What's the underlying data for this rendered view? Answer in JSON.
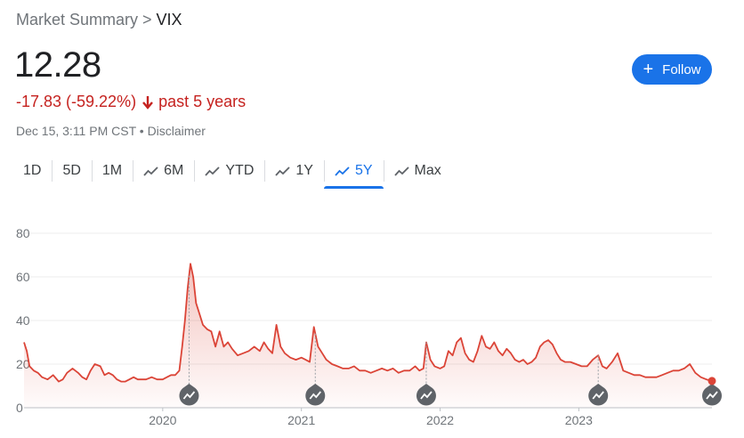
{
  "breadcrumb": {
    "parent": "Market Summary",
    "separator": ">",
    "current": "VIX"
  },
  "quote": {
    "price": "12.28",
    "change": "-17.83 (-59.22%)",
    "period": "past 5 years",
    "timestamp": "Dec 15, 3:11 PM CST",
    "meta_separator": "•",
    "disclaimer": "Disclaimer"
  },
  "follow_button": {
    "label": "Follow",
    "icon": "plus-icon"
  },
  "colors": {
    "negative": "#c5221f",
    "line": "#db4437",
    "accent": "#1a73e8",
    "marker": "#5f6368"
  },
  "tabs": [
    {
      "label": "1D",
      "icon": null,
      "active": false
    },
    {
      "label": "5D",
      "icon": null,
      "active": false
    },
    {
      "label": "1M",
      "icon": null,
      "active": false
    },
    {
      "label": "6M",
      "icon": "trend-icon",
      "active": false
    },
    {
      "label": "YTD",
      "icon": "trend-icon",
      "active": false
    },
    {
      "label": "1Y",
      "icon": "trend-icon",
      "active": false
    },
    {
      "label": "5Y",
      "icon": "trend-icon",
      "active": true
    },
    {
      "label": "Max",
      "icon": "trend-icon",
      "active": false
    }
  ],
  "chart_data": {
    "type": "area",
    "title": "",
    "xlabel": "",
    "ylabel": "",
    "ylim": [
      0,
      80
    ],
    "yticks": [
      0,
      20,
      40,
      60,
      80
    ],
    "xlim": [
      2019.0,
      2023.96
    ],
    "xticks": [
      2020,
      2021,
      2022,
      2023
    ],
    "xticklabels": [
      "2020",
      "2021",
      "2022",
      "2023"
    ],
    "grid": true,
    "legend": "none",
    "series": [
      {
        "x": [
          2019.0,
          2019.02,
          2019.04,
          2019.07,
          2019.1,
          2019.13,
          2019.17,
          2019.21,
          2019.25,
          2019.28,
          2019.31,
          2019.35,
          2019.39,
          2019.42,
          2019.45,
          2019.48,
          2019.51,
          2019.55,
          2019.58,
          2019.61,
          2019.64,
          2019.67,
          2019.7,
          2019.73,
          2019.76,
          2019.79,
          2019.82,
          2019.85,
          2019.88,
          2019.92,
          2019.96,
          2020.0,
          2020.03,
          2020.06,
          2020.09,
          2020.12,
          2020.14,
          2020.16,
          2020.18,
          2020.2,
          2020.22,
          2020.24,
          2020.26,
          2020.29,
          2020.32,
          2020.35,
          2020.38,
          2020.41,
          2020.44,
          2020.47,
          2020.5,
          2020.54,
          2020.58,
          2020.62,
          2020.66,
          2020.7,
          2020.73,
          2020.76,
          2020.79,
          2020.82,
          2020.85,
          2020.88,
          2020.92,
          2020.96,
          2021.0,
          2021.03,
          2021.06,
          2021.09,
          2021.12,
          2021.15,
          2021.18,
          2021.22,
          2021.26,
          2021.3,
          2021.34,
          2021.38,
          2021.42,
          2021.46,
          2021.5,
          2021.54,
          2021.58,
          2021.62,
          2021.66,
          2021.7,
          2021.74,
          2021.78,
          2021.82,
          2021.85,
          2021.88,
          2021.9,
          2021.93,
          2021.96,
          2022.0,
          2022.03,
          2022.06,
          2022.09,
          2022.12,
          2022.15,
          2022.18,
          2022.21,
          2022.24,
          2022.27,
          2022.3,
          2022.33,
          2022.36,
          2022.39,
          2022.42,
          2022.45,
          2022.48,
          2022.51,
          2022.54,
          2022.57,
          2022.6,
          2022.63,
          2022.66,
          2022.69,
          2022.72,
          2022.75,
          2022.78,
          2022.81,
          2022.84,
          2022.87,
          2022.9,
          2022.94,
          2022.98,
          2023.02,
          2023.06,
          2023.1,
          2023.14,
          2023.17,
          2023.2,
          2023.24,
          2023.28,
          2023.32,
          2023.36,
          2023.4,
          2023.44,
          2023.48,
          2023.52,
          2023.56,
          2023.6,
          2023.64,
          2023.68,
          2023.72,
          2023.76,
          2023.8,
          2023.84,
          2023.88,
          2023.92,
          2023.96
        ],
        "y": [
          30,
          26,
          19,
          17,
          16,
          14,
          13,
          15,
          12,
          13,
          16,
          18,
          16,
          14,
          13,
          17,
          20,
          19,
          15,
          16,
          15,
          13,
          12,
          12,
          13,
          14,
          13,
          13,
          13,
          14,
          13,
          13,
          14,
          15,
          15,
          17,
          28,
          40,
          55,
          66,
          60,
          48,
          44,
          38,
          36,
          35,
          28,
          35,
          28,
          30,
          27,
          24,
          25,
          26,
          28,
          26,
          30,
          27,
          25,
          38,
          28,
          25,
          23,
          22,
          23,
          22,
          21,
          37,
          28,
          25,
          22,
          20,
          19,
          18,
          18,
          19,
          17,
          17,
          16,
          17,
          18,
          17,
          18,
          16,
          17,
          17,
          19,
          17,
          18,
          30,
          22,
          19,
          18,
          19,
          26,
          24,
          30,
          32,
          25,
          22,
          21,
          26,
          33,
          28,
          27,
          30,
          26,
          24,
          27,
          25,
          22,
          21,
          22,
          20,
          21,
          23,
          28,
          30,
          31,
          29,
          25,
          22,
          21,
          21,
          20,
          19,
          19,
          22,
          24,
          19,
          18,
          21,
          25,
          17,
          16,
          15,
          15,
          14,
          14,
          14,
          15,
          16,
          17,
          17,
          18,
          20,
          16,
          14,
          13,
          12.28
        ]
      }
    ],
    "event_markers": [
      2020.19,
      2021.1,
      2021.9,
      2023.14,
      2023.96
    ]
  }
}
